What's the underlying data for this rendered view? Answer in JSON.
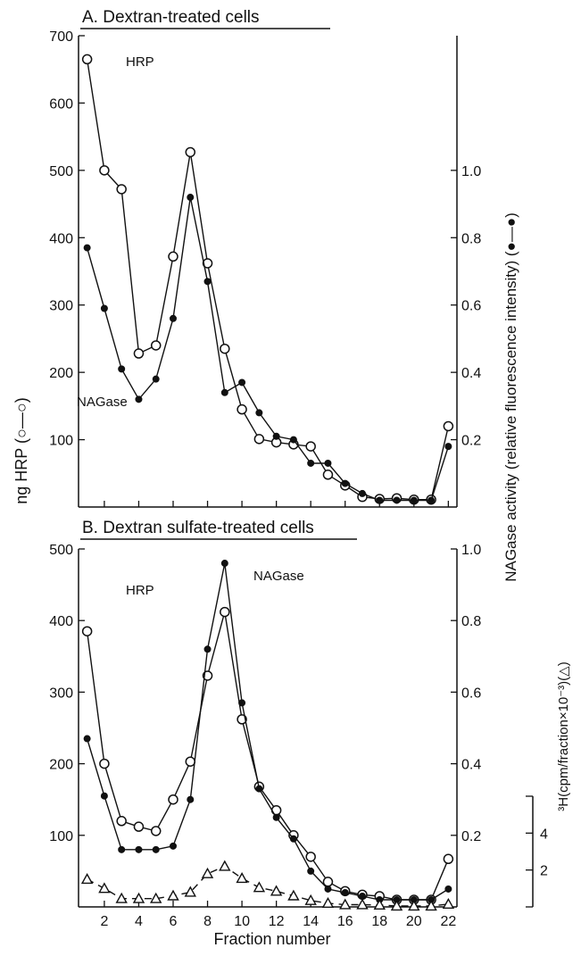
{
  "figure": {
    "xlabel": "Fraction number",
    "ylabel_left": "ng HRP (○—○)",
    "ylabel_right": "NAGase activity (relative fluorescence intensity) (●—●)",
    "ylabel_right3": "³H(cpm/fraction×10⁻³)(△)"
  },
  "chart_data": [
    {
      "type": "line",
      "title": "A. Dextran-treated cells",
      "x_ticks": [
        2,
        4,
        6,
        8,
        10,
        12,
        14,
        16,
        18,
        20,
        22
      ],
      "xlim": [
        0.5,
        22.5
      ],
      "left_axis": {
        "ylim": [
          0,
          700
        ],
        "ticks": [
          100,
          200,
          300,
          400,
          500,
          600,
          700
        ]
      },
      "right_axis": {
        "ylim": [
          0,
          1.4
        ],
        "ticks": [
          "0.2",
          "0.4",
          "0.6",
          "0.8",
          "1.0"
        ]
      },
      "series": [
        {
          "name": "HRP",
          "marker": "open-circle",
          "axis": "left",
          "x": [
            1,
            2,
            3,
            4,
            5,
            6,
            7,
            8,
            9,
            10,
            11,
            12,
            13,
            14,
            15,
            16,
            17,
            18,
            19,
            20,
            21,
            22
          ],
          "values": [
            665,
            500,
            472,
            228,
            240,
            372,
            527,
            362,
            235,
            145,
            101,
            96,
            93,
            90,
            48,
            32,
            15,
            12,
            13,
            11,
            11,
            120
          ]
        },
        {
          "name": "NAGase",
          "marker": "filled-circle",
          "axis": "right",
          "x": [
            1,
            2,
            3,
            4,
            5,
            6,
            7,
            8,
            9,
            10,
            11,
            12,
            13,
            14,
            15,
            16,
            17,
            18,
            19,
            20,
            21,
            22
          ],
          "values": [
            0.77,
            0.59,
            0.41,
            0.32,
            0.38,
            0.56,
            0.92,
            0.67,
            0.34,
            0.37,
            0.28,
            0.21,
            0.2,
            0.13,
            0.13,
            0.07,
            0.04,
            0.02,
            0.02,
            0.02,
            0.02,
            0.18
          ]
        }
      ],
      "annotations": [
        "HRP",
        "NAGase"
      ]
    },
    {
      "type": "line",
      "title": "B. Dextran sulfate-treated cells",
      "x_ticks": [
        2,
        4,
        6,
        8,
        10,
        12,
        14,
        16,
        18,
        20,
        22
      ],
      "xlim": [
        0.5,
        22.5
      ],
      "left_axis": {
        "ylim": [
          0,
          500
        ],
        "ticks": [
          100,
          200,
          300,
          400,
          500
        ]
      },
      "right_axis": {
        "ylim": [
          0,
          1.0
        ],
        "ticks": [
          "0.2",
          "0.4",
          "0.6",
          "0.8",
          "1.0"
        ]
      },
      "third_axis": {
        "ylim": [
          0,
          6
        ],
        "ticks": [
          "2",
          "4"
        ]
      },
      "series": [
        {
          "name": "HRP",
          "marker": "open-circle",
          "axis": "left",
          "x": [
            1,
            2,
            3,
            4,
            5,
            6,
            7,
            8,
            9,
            10,
            11,
            12,
            13,
            14,
            15,
            16,
            17,
            18,
            19,
            20,
            21,
            22
          ],
          "values": [
            385,
            200,
            120,
            112,
            106,
            150,
            203,
            323,
            412,
            262,
            168,
            135,
            100,
            70,
            35,
            22,
            17,
            15,
            10,
            10,
            10,
            67
          ]
        },
        {
          "name": "NAGase",
          "marker": "filled-circle",
          "axis": "right",
          "x": [
            1,
            2,
            3,
            4,
            5,
            6,
            7,
            8,
            9,
            10,
            11,
            12,
            13,
            14,
            15,
            16,
            17,
            18,
            19,
            20,
            21,
            22
          ],
          "values": [
            0.47,
            0.31,
            0.16,
            0.16,
            0.16,
            0.17,
            0.3,
            0.72,
            0.96,
            0.57,
            0.33,
            0.25,
            0.19,
            0.1,
            0.05,
            0.04,
            0.03,
            0.02,
            0.02,
            0.02,
            0.02,
            0.05
          ]
        },
        {
          "axis": "third",
          "marker": "open-triangle",
          "dash": true,
          "x": [
            1,
            2,
            3,
            4,
            5,
            6,
            7,
            8,
            9,
            10,
            11,
            12,
            13,
            14,
            15,
            16,
            17,
            18,
            19,
            20,
            21,
            22
          ],
          "values": [
            1.5,
            1.0,
            0.45,
            0.45,
            0.45,
            0.6,
            0.8,
            1.8,
            2.2,
            1.55,
            1.05,
            0.85,
            0.6,
            0.35,
            0.2,
            0.12,
            0.12,
            0.1,
            0.05,
            0.05,
            0.05,
            0.15
          ]
        }
      ],
      "annotations": [
        "HRP",
        "NAGase"
      ]
    }
  ]
}
